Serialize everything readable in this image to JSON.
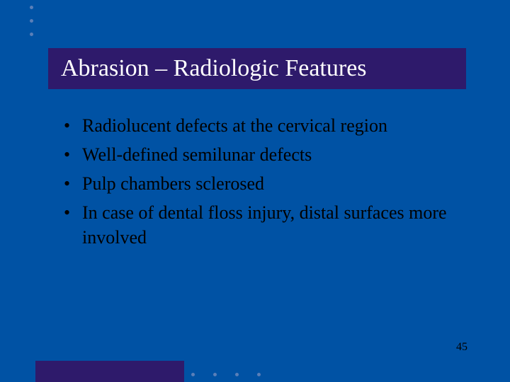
{
  "colors": {
    "background": "#0052a4",
    "title_box_bg": "#2e1a6b",
    "title_text": "#ffffff",
    "body_text": "#000000",
    "dot_color": "#5a7fb8",
    "bottom_bar_bg": "#2e1a6b"
  },
  "typography": {
    "font_family": "Times New Roman",
    "title_fontsize": 34,
    "body_fontsize": 26,
    "page_num_fontsize": 16
  },
  "title": "Abrasion – Radiologic Features",
  "bullets": [
    "Radiolucent defects at the cervical region",
    "Well-defined semilunar defects",
    "Pulp chambers sclerosed",
    " In case of dental floss injury, distal surfaces more involved"
  ],
  "page_number": "45",
  "decoration": {
    "top_dots_count": 3,
    "bottom_dots_count": 4
  }
}
